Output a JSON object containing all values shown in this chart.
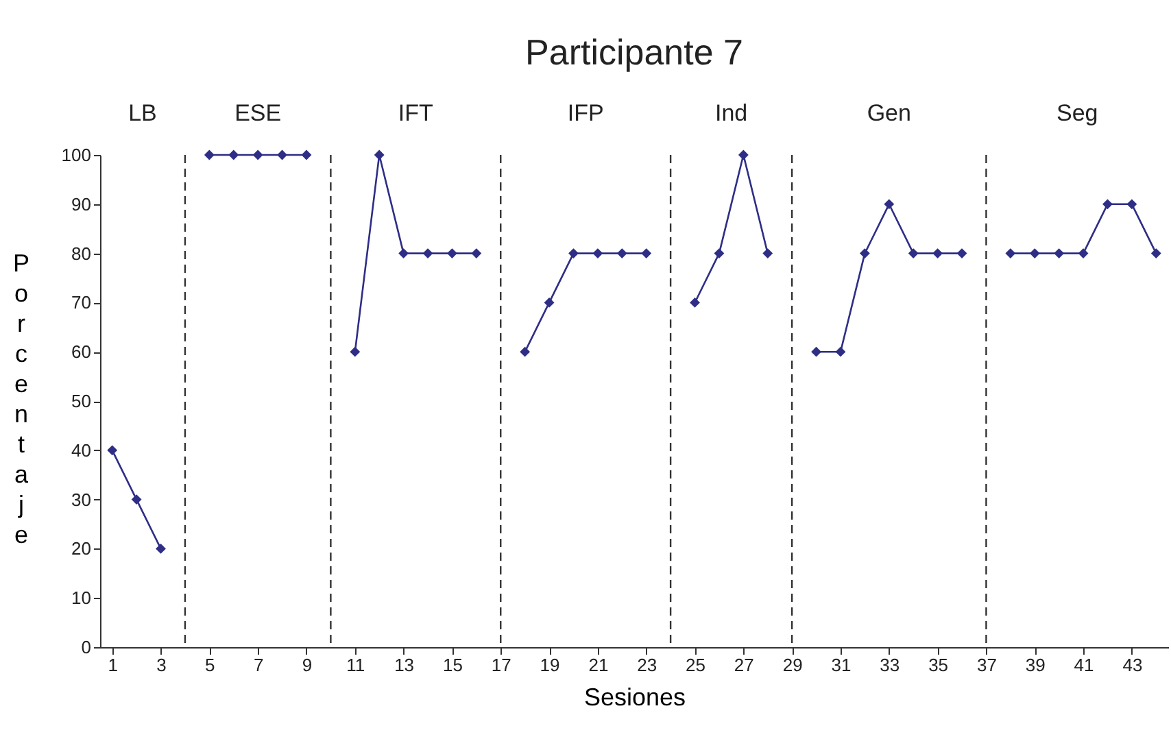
{
  "chart_data": {
    "type": "line",
    "title": "Participante 7",
    "xlabel": "Sesiones",
    "ylabel": "Porcentaje",
    "annotations": [
      "LB",
      "ESE",
      "IFT",
      "IFP",
      "Ind",
      "Gen",
      "Seg"
    ],
    "series": [
      {
        "color": "#2e2e86",
        "x": [
          1,
          2,
          3
        ],
        "values": [
          40,
          30,
          20
        ]
      },
      {
        "color": "#2e2e86",
        "x": [
          5,
          6,
          7,
          8,
          9
        ],
        "values": [
          100,
          100,
          100,
          100,
          100
        ]
      },
      {
        "color": "#2e2e86",
        "x": [
          11,
          12,
          13,
          14,
          15,
          16
        ],
        "values": [
          60,
          100,
          80,
          80,
          80,
          80
        ]
      },
      {
        "color": "#2e2e86",
        "x": [
          18,
          19,
          20,
          21,
          22,
          23
        ],
        "values": [
          60,
          70,
          80,
          80,
          80,
          80
        ]
      },
      {
        "color": "#2e2e86",
        "x": [
          25,
          26,
          27,
          28
        ],
        "values": [
          70,
          80,
          100,
          80
        ]
      },
      {
        "color": "#2e2e86",
        "x": [
          30,
          31,
          32,
          33,
          34,
          35,
          36
        ],
        "values": [
          60,
          60,
          80,
          90,
          80,
          80,
          80
        ]
      },
      {
        "color": "#2e2e86",
        "x": [
          38,
          39,
          40,
          41,
          42,
          43,
          44
        ],
        "values": [
          80,
          80,
          80,
          80,
          90,
          90,
          80
        ]
      }
    ],
    "ref_lines": [
      {
        "axis": "x",
        "value": 4,
        "color": "#333333",
        "line_style": "dashed"
      },
      {
        "axis": "x",
        "value": 10,
        "color": "#333333",
        "line_style": "dashed"
      },
      {
        "axis": "x",
        "value": 17,
        "color": "#333333",
        "line_style": "dashed"
      },
      {
        "axis": "x",
        "value": 24,
        "color": "#333333",
        "line_style": "dashed"
      },
      {
        "axis": "x",
        "value": 29,
        "color": "#333333",
        "line_style": "dashed"
      },
      {
        "axis": "x",
        "value": 37,
        "color": "#333333",
        "line_style": "dashed"
      }
    ],
    "xlim": [
      0.5,
      44.5
    ],
    "xticks": [
      1,
      3,
      5,
      7,
      9,
      11,
      13,
      15,
      17,
      19,
      21,
      23,
      25,
      27,
      29,
      31,
      33,
      35,
      37,
      39,
      41,
      43
    ],
    "ylim": [
      0,
      100
    ],
    "yticks": [
      0,
      10,
      20,
      30,
      40,
      50,
      60,
      70,
      80,
      90,
      100
    ],
    "grid": false,
    "legend": false,
    "marker": "diamond",
    "line_style": "solid"
  }
}
